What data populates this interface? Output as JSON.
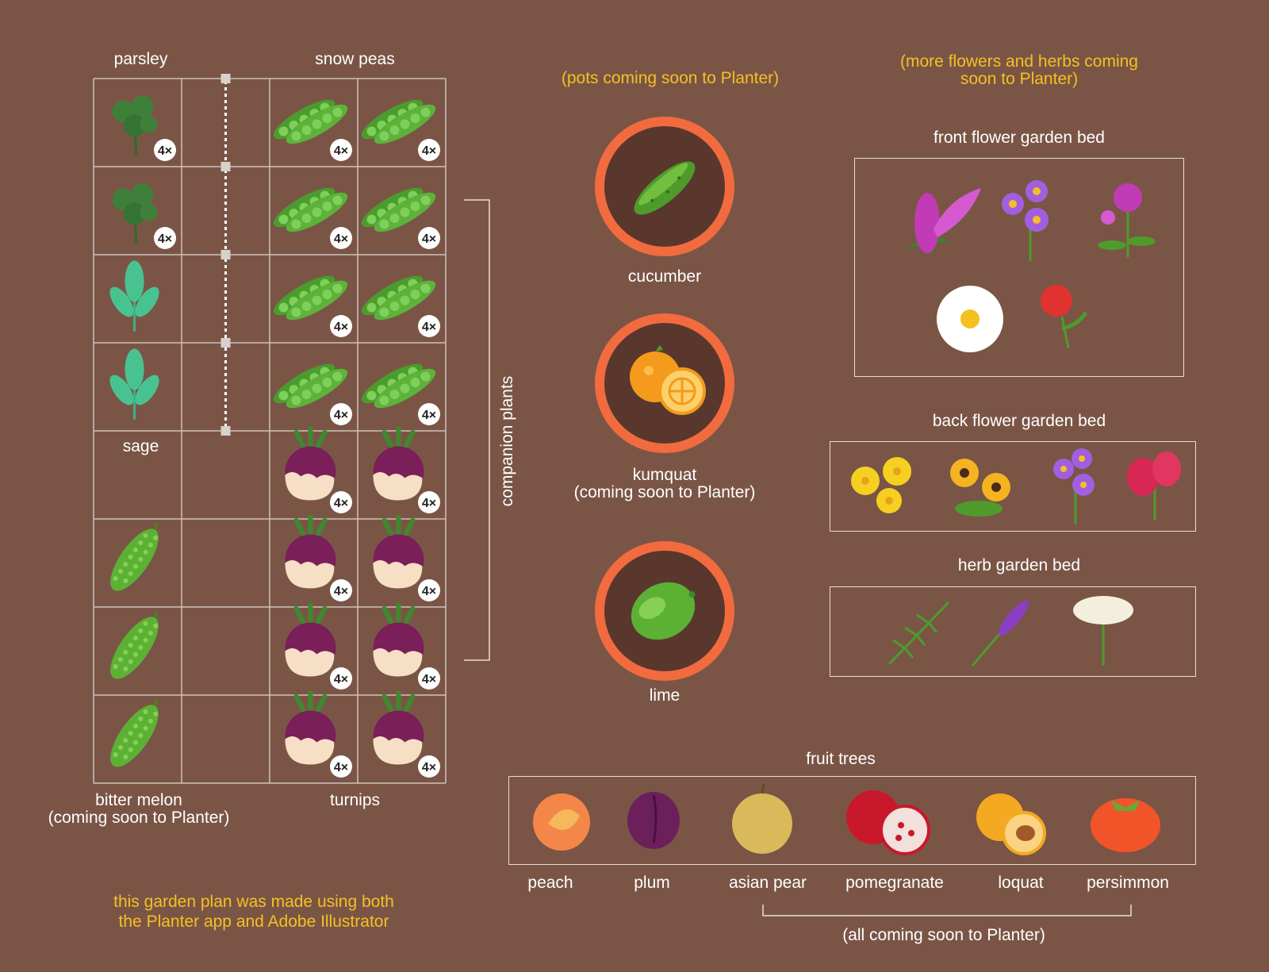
{
  "colors": {
    "background": "#7a5546",
    "grid_line": "#cfc2bb",
    "accent_text": "#f5c021",
    "pot_ring": "#f26b3f",
    "pot_soil": "#5a372d"
  },
  "bed": {
    "top_labels": {
      "left": "parsley",
      "right": "snow peas"
    },
    "sage_label": "sage",
    "bottom_left_label_line1": "bitter melon",
    "bottom_left_label_line2": "(coming soon to Planter)",
    "bottom_right_label": "turnips",
    "count_badge": "4×",
    "companion_label": "companion plants",
    "cells": [
      [
        "parsley-icon",
        "",
        "snow-pea-icon",
        "snow-pea-icon"
      ],
      [
        "parsley-icon",
        "",
        "snow-pea-icon",
        "snow-pea-icon"
      ],
      [
        "sage-icon",
        "",
        "snow-pea-icon",
        "snow-pea-icon"
      ],
      [
        "sage-icon",
        "",
        "snow-pea-icon",
        "snow-pea-icon"
      ],
      [
        "",
        "",
        "turnip-icon",
        "turnip-icon"
      ],
      [
        "bitter-melon-icon",
        "",
        "turnip-icon",
        "turnip-icon"
      ],
      [
        "bitter-melon-icon",
        "",
        "turnip-icon",
        "turnip-icon"
      ],
      [
        "bitter-melon-icon",
        "",
        "turnip-icon",
        "turnip-icon"
      ]
    ]
  },
  "pots": {
    "note": "(pots coming soon to Planter)",
    "items": [
      {
        "label_line1": "cucumber",
        "label_line2": "",
        "icon": "cucumber-icon"
      },
      {
        "label_line1": "kumquat",
        "label_line2": "(coming soon to Planter)",
        "icon": "kumquat-icon"
      },
      {
        "label_line1": "lime",
        "label_line2": "",
        "icon": "lime-icon"
      }
    ]
  },
  "flowers": {
    "note_line1": "(more flowers and herbs coming",
    "note_line2": "soon to Planter)",
    "front_bed_title": "front flower garden bed",
    "back_bed_title": "back flower garden bed",
    "herb_bed_title": "herb garden bed"
  },
  "fruit_trees": {
    "title": "fruit trees",
    "items": [
      "peach",
      "plum",
      "asian pear",
      "pomegranate",
      "loquat",
      "persimmon"
    ],
    "coming_soon_note": "(all coming soon to Planter)"
  },
  "footer": {
    "line1": "this garden plan was made using both",
    "line2": "the Planter app and Adobe Illustrator"
  }
}
